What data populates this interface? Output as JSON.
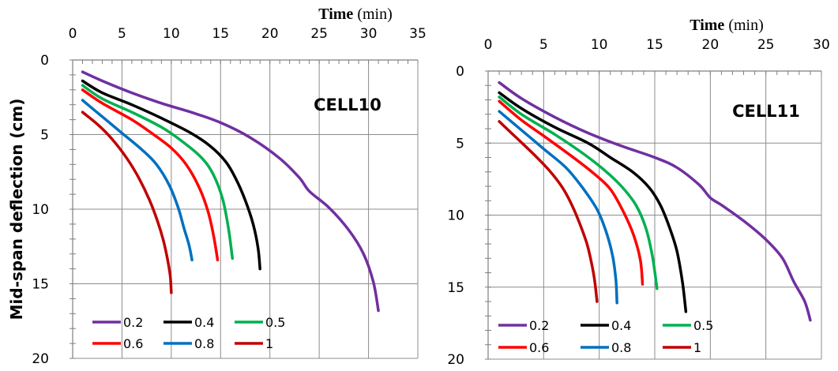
{
  "chart_data": [
    {
      "type": "line",
      "title": "",
      "panel_label": "CELL10",
      "xlabel": "Time",
      "xlabel_unit": "(min)",
      "ylabel": "Mid-span deflection (cm)",
      "xlim": [
        0,
        35
      ],
      "ylim": [
        0,
        20
      ],
      "y_inverted": true,
      "x_axis_position": "top",
      "x_ticks": [
        0,
        5,
        10,
        15,
        20,
        25,
        30,
        35
      ],
      "y_ticks": [
        0,
        5,
        10,
        15,
        20
      ],
      "grid": true,
      "legend_position": "bottom-left",
      "series": [
        {
          "name": "0.2",
          "color": "#7030a0",
          "x": [
            1,
            3,
            6,
            9,
            12,
            15,
            18,
            21,
            23,
            24,
            26,
            28,
            29.5,
            30.5,
            31
          ],
          "y": [
            0.8,
            1.4,
            2.2,
            2.9,
            3.5,
            4.2,
            5.2,
            6.6,
            7.9,
            8.8,
            9.9,
            11.4,
            13.0,
            14.9,
            16.8
          ]
        },
        {
          "name": "0.4",
          "color": "#000000",
          "x": [
            1,
            3,
            6,
            9,
            12,
            14,
            15.5,
            16.5,
            17.5,
            18.3,
            18.8,
            19
          ],
          "y": [
            1.4,
            2.2,
            3.0,
            3.9,
            4.9,
            5.8,
            6.8,
            7.9,
            9.4,
            11.0,
            12.6,
            14.0
          ]
        },
        {
          "name": "0.5",
          "color": "#00b050",
          "x": [
            1,
            3,
            6,
            9,
            11,
            13,
            14.2,
            15.2,
            15.8,
            16.2
          ],
          "y": [
            1.7,
            2.6,
            3.5,
            4.5,
            5.4,
            6.5,
            7.6,
            9.3,
            11.3,
            13.3
          ]
        },
        {
          "name": "0.6",
          "color": "#ff0000",
          "x": [
            1,
            3,
            6,
            8,
            10,
            11.5,
            12.8,
            13.7,
            14.3,
            14.7
          ],
          "y": [
            2.0,
            2.9,
            4.0,
            4.9,
            5.9,
            7.0,
            8.5,
            10.1,
            11.8,
            13.4
          ]
        },
        {
          "name": "0.8",
          "color": "#0070c0",
          "x": [
            1,
            3,
            5,
            7,
            8.5,
            9.8,
            10.7,
            11.3,
            11.8,
            12.1
          ],
          "y": [
            2.7,
            3.8,
            4.9,
            6.0,
            7.0,
            8.4,
            9.9,
            11.3,
            12.4,
            13.4
          ]
        },
        {
          "name": "1",
          "color": "#c00000",
          "x": [
            1,
            2.5,
            4,
            5.5,
            6.7,
            7.8,
            8.6,
            9.2,
            9.6,
            9.9,
            10
          ],
          "y": [
            3.5,
            4.3,
            5.3,
            6.6,
            7.9,
            9.4,
            10.8,
            12.1,
            13.3,
            14.5,
            15.6
          ]
        }
      ]
    },
    {
      "type": "line",
      "title": "",
      "panel_label": "CELL11",
      "xlabel": "Time",
      "xlabel_unit": "(min)",
      "ylabel": "",
      "xlim": [
        0,
        30
      ],
      "ylim": [
        0,
        20
      ],
      "y_inverted": true,
      "x_axis_position": "top",
      "x_ticks": [
        0,
        5,
        10,
        15,
        20,
        25,
        30
      ],
      "y_ticks": [
        0,
        5,
        10,
        15,
        20
      ],
      "grid": true,
      "legend_position": "bottom-left",
      "series": [
        {
          "name": "0.2",
          "color": "#7030a0",
          "x": [
            1,
            3,
            6,
            9,
            12,
            15,
            17,
            19,
            20,
            21,
            23,
            25,
            26.5,
            27.5,
            28.5,
            29
          ],
          "y": [
            0.8,
            1.9,
            3.2,
            4.3,
            5.2,
            6.0,
            6.7,
            7.9,
            8.8,
            9.3,
            10.4,
            11.7,
            13.0,
            14.6,
            16.0,
            17.3
          ]
        },
        {
          "name": "0.4",
          "color": "#000000",
          "x": [
            1,
            3,
            6,
            9,
            11,
            13,
            14.5,
            15.5,
            16.3,
            17,
            17.5,
            17.8
          ],
          "y": [
            1.5,
            2.6,
            3.9,
            5.0,
            6.0,
            7.0,
            8.1,
            9.3,
            10.8,
            12.5,
            14.7,
            16.7
          ]
        },
        {
          "name": "0.5",
          "color": "#00b050",
          "x": [
            1,
            3,
            6,
            8.5,
            10.5,
            12,
            13.3,
            14.2,
            14.8,
            15.2
          ],
          "y": [
            1.8,
            3.0,
            4.4,
            5.7,
            6.9,
            8.0,
            9.3,
            10.9,
            12.9,
            15.1
          ]
        },
        {
          "name": "0.6",
          "color": "#ff0000",
          "x": [
            1,
            3,
            5,
            7.5,
            9.5,
            11,
            12.2,
            13.1,
            13.7,
            13.9
          ],
          "y": [
            2.1,
            3.4,
            4.5,
            5.9,
            7.1,
            8.2,
            9.8,
            11.4,
            13.1,
            14.8
          ]
        },
        {
          "name": "0.8",
          "color": "#0070c0",
          "x": [
            1,
            3,
            5,
            7,
            8.5,
            9.8,
            10.6,
            11.2,
            11.5,
            11.6
          ],
          "y": [
            2.8,
            4.1,
            5.4,
            6.7,
            8.1,
            9.6,
            11.1,
            12.8,
            14.5,
            16.1
          ]
        },
        {
          "name": "1",
          "color": "#c00000",
          "x": [
            1,
            2.5,
            4,
            5.5,
            6.7,
            7.6,
            8.3,
            8.9,
            9.3,
            9.6,
            9.8
          ],
          "y": [
            3.5,
            4.6,
            5.7,
            6.9,
            8.1,
            9.4,
            10.7,
            12.0,
            13.3,
            14.6,
            16.0
          ]
        }
      ]
    }
  ]
}
